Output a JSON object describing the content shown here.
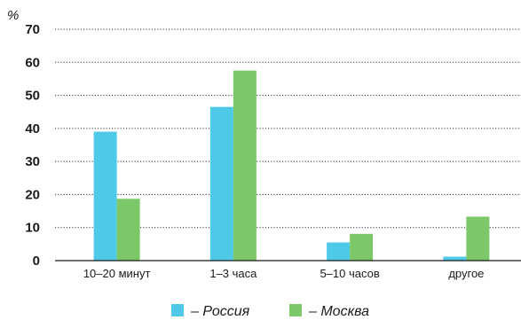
{
  "chart_data": {
    "type": "bar",
    "ylabel": "%",
    "ylim": [
      0,
      70
    ],
    "yticks": [
      0,
      10,
      20,
      30,
      40,
      50,
      60,
      70
    ],
    "grid": true,
    "legend_position": "bottom",
    "categories": [
      "10–20 минут",
      "1–3 часа",
      "5–10 часов",
      "другое"
    ],
    "series": [
      {
        "name": "Россия",
        "color": "#4ec9e8",
        "values": [
          39,
          46.5,
          5.5,
          1.2
        ]
      },
      {
        "name": "Москва",
        "color": "#7cc767",
        "values": [
          18.7,
          57.5,
          8.1,
          13.3
        ]
      }
    ],
    "legend_dash": "–"
  }
}
